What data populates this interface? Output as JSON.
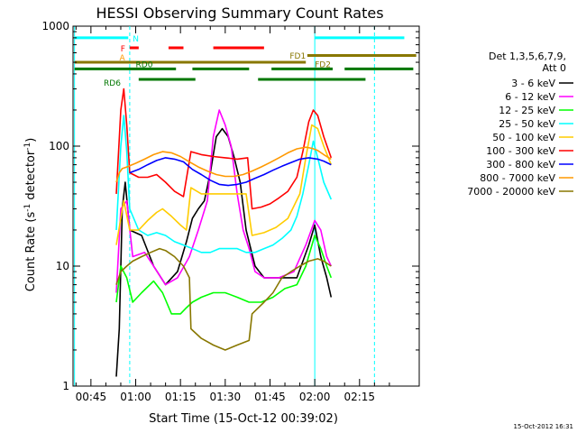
{
  "chart_data": {
    "type": "line",
    "title": "HESSI Observing Summary Count Rates",
    "xlabel": "Start Time (15-Oct-12 00:39:02)",
    "ylabel_main": "Count Rate (s",
    "ylabel_sup1": "-1",
    "ylabel_mid": " detector",
    "ylabel_sup2": "-1",
    "ylabel_end": ")",
    "yscale": "log",
    "ylim": [
      1,
      1000
    ],
    "xlim_min": [
      39.0,
      155.0
    ],
    "x_ticks": [
      {
        "v": 45,
        "label": "00:45"
      },
      {
        "v": 60,
        "label": "01:00"
      },
      {
        "v": 75,
        "label": "01:15"
      },
      {
        "v": 90,
        "label": "01:30"
      },
      {
        "v": 105,
        "label": "01:45"
      },
      {
        "v": 120,
        "label": "02:00"
      },
      {
        "v": 135,
        "label": "02:15"
      }
    ],
    "y_ticks": [
      {
        "v": 1,
        "label": "1"
      },
      {
        "v": 10,
        "label": "10"
      },
      {
        "v": 100,
        "label": "100"
      },
      {
        "v": 1000,
        "label": "1000"
      }
    ],
    "legend_header": [
      "Det 1,3,5,6,7,9,",
      "Att 0"
    ],
    "legend_position": "right",
    "series": [
      {
        "name": "3 - 6 keV",
        "color": "#000000",
        "points": [
          [
            53.5,
            1.2
          ],
          [
            54.5,
            3
          ],
          [
            55.5,
            30
          ],
          [
            56.5,
            50
          ],
          [
            58,
            20
          ],
          [
            62,
            18
          ],
          [
            66,
            10
          ],
          [
            70,
            7
          ],
          [
            74,
            9
          ],
          [
            77,
            16
          ],
          [
            79,
            25
          ],
          [
            81,
            30
          ],
          [
            83,
            35
          ],
          [
            85,
            60
          ],
          [
            87,
            120
          ],
          [
            89,
            140
          ],
          [
            91,
            120
          ],
          [
            93,
            80
          ],
          [
            95,
            50
          ],
          [
            97,
            20
          ],
          [
            100,
            10
          ],
          [
            103,
            8
          ],
          [
            106,
            8
          ],
          [
            110,
            8
          ],
          [
            114,
            8
          ],
          [
            118,
            15
          ],
          [
            120,
            22
          ],
          [
            122,
            12
          ],
          [
            124,
            8
          ],
          [
            125.5,
            5.5
          ]
        ]
      },
      {
        "name": "6 - 12 keV",
        "color": "#ff00ff",
        "points": [
          [
            53.5,
            6
          ],
          [
            55,
            30
          ],
          [
            57,
            35
          ],
          [
            59,
            12
          ],
          [
            63,
            13
          ],
          [
            66,
            10
          ],
          [
            70,
            7
          ],
          [
            74,
            8
          ],
          [
            78,
            12
          ],
          [
            81,
            20
          ],
          [
            84,
            35
          ],
          [
            86,
            120
          ],
          [
            88,
            200
          ],
          [
            90,
            150
          ],
          [
            92,
            100
          ],
          [
            94,
            40
          ],
          [
            96,
            20
          ],
          [
            98,
            14
          ],
          [
            100,
            9
          ],
          [
            103,
            8
          ],
          [
            108,
            8
          ],
          [
            113,
            9
          ],
          [
            117,
            15
          ],
          [
            120,
            24
          ],
          [
            122,
            20
          ],
          [
            124,
            12
          ],
          [
            125.5,
            10
          ]
        ]
      },
      {
        "name": "12 - 25 keV",
        "color": "#00ff00",
        "points": [
          [
            53.5,
            5
          ],
          [
            55,
            10
          ],
          [
            57,
            8
          ],
          [
            59,
            5
          ],
          [
            62,
            6
          ],
          [
            66,
            7.5
          ],
          [
            69,
            6
          ],
          [
            72,
            4
          ],
          [
            75,
            4
          ],
          [
            77,
            4.5
          ],
          [
            79,
            5
          ],
          [
            82,
            5.5
          ],
          [
            86,
            6
          ],
          [
            90,
            6
          ],
          [
            94,
            5.5
          ],
          [
            98,
            5
          ],
          [
            102,
            5
          ],
          [
            106,
            5.5
          ],
          [
            110,
            6.5
          ],
          [
            114,
            7
          ],
          [
            117,
            10
          ],
          [
            120,
            18
          ],
          [
            122,
            14
          ],
          [
            124,
            10
          ],
          [
            125.5,
            8
          ]
        ]
      },
      {
        "name": "25 - 50 keV",
        "color": "#00ffff",
        "points": [
          [
            53.5,
            20
          ],
          [
            55,
            100
          ],
          [
            56,
            180
          ],
          [
            57,
            90
          ],
          [
            58,
            30
          ],
          [
            61,
            20
          ],
          [
            64,
            18
          ],
          [
            67,
            19
          ],
          [
            70,
            18
          ],
          [
            73,
            16
          ],
          [
            76,
            15
          ],
          [
            79,
            14
          ],
          [
            82,
            13
          ],
          [
            85,
            13
          ],
          [
            88,
            14
          ],
          [
            91,
            14
          ],
          [
            94,
            14
          ],
          [
            97,
            13
          ],
          [
            100,
            13
          ],
          [
            103,
            14
          ],
          [
            106,
            15
          ],
          [
            109,
            17
          ],
          [
            112,
            20
          ],
          [
            114,
            26
          ],
          [
            116,
            40
          ],
          [
            118,
            70
          ],
          [
            119.5,
            110
          ],
          [
            121,
            80
          ],
          [
            123,
            50
          ],
          [
            125.5,
            36
          ]
        ]
      },
      {
        "name": "50 - 100 keV",
        "color": "#ffcc00",
        "points": [
          [
            53.5,
            15
          ],
          [
            56,
            35
          ],
          [
            58,
            20
          ],
          [
            61,
            20
          ],
          [
            64,
            24
          ],
          [
            67,
            28
          ],
          [
            69,
            30
          ],
          [
            72,
            26
          ],
          [
            75,
            22
          ],
          [
            77,
            20
          ],
          [
            78.5,
            45
          ],
          [
            82,
            40
          ],
          [
            86,
            40
          ],
          [
            90,
            40
          ],
          [
            94,
            40
          ],
          [
            97,
            40
          ],
          [
            99,
            18
          ],
          [
            103,
            19
          ],
          [
            107,
            21
          ],
          [
            111,
            25
          ],
          [
            115,
            40
          ],
          [
            117,
            80
          ],
          [
            119,
            150
          ],
          [
            121,
            140
          ],
          [
            123,
            100
          ],
          [
            125.5,
            70
          ]
        ]
      },
      {
        "name": "100 - 300 keV",
        "color": "#ff0000",
        "points": [
          [
            53.5,
            40
          ],
          [
            55,
            200
          ],
          [
            56,
            300
          ],
          [
            57,
            150
          ],
          [
            58,
            60
          ],
          [
            61,
            55
          ],
          [
            64,
            55
          ],
          [
            67,
            58
          ],
          [
            70,
            50
          ],
          [
            73,
            42
          ],
          [
            76,
            38
          ],
          [
            78.5,
            90
          ],
          [
            82,
            85
          ],
          [
            86,
            82
          ],
          [
            90,
            80
          ],
          [
            94,
            78
          ],
          [
            97.5,
            80
          ],
          [
            99,
            30
          ],
          [
            102,
            31
          ],
          [
            105,
            33
          ],
          [
            108,
            37
          ],
          [
            111,
            42
          ],
          [
            114,
            55
          ],
          [
            116,
            90
          ],
          [
            118,
            160
          ],
          [
            119.5,
            200
          ],
          [
            121,
            180
          ],
          [
            123,
            120
          ],
          [
            125.5,
            80
          ]
        ]
      },
      {
        "name": "300 - 800 keV",
        "color": "#0000ff",
        "points": [
          [
            58,
            60
          ],
          [
            61,
            64
          ],
          [
            64,
            70
          ],
          [
            67,
            76
          ],
          [
            70,
            80
          ],
          [
            73,
            78
          ],
          [
            76,
            74
          ],
          [
            79,
            64
          ],
          [
            82,
            58
          ],
          [
            85,
            52
          ],
          [
            88,
            48
          ],
          [
            91,
            47
          ],
          [
            94,
            48
          ],
          [
            97,
            50
          ],
          [
            100,
            54
          ],
          [
            103,
            58
          ],
          [
            106,
            63
          ],
          [
            109,
            68
          ],
          [
            112,
            73
          ],
          [
            115,
            78
          ],
          [
            118,
            80
          ],
          [
            121,
            78
          ],
          [
            123,
            75
          ],
          [
            125.5,
            70
          ]
        ]
      },
      {
        "name": "800 - 7000 keV",
        "color": "#ff9900",
        "points": [
          [
            53.5,
            50
          ],
          [
            54.5,
            60
          ],
          [
            55.5,
            65
          ],
          [
            57,
            67
          ],
          [
            60,
            72
          ],
          [
            63,
            78
          ],
          [
            66,
            85
          ],
          [
            69,
            90
          ],
          [
            72,
            88
          ],
          [
            75,
            82
          ],
          [
            78,
            74
          ],
          [
            81,
            67
          ],
          [
            84,
            62
          ],
          [
            87,
            58
          ],
          [
            90,
            56
          ],
          [
            93,
            56
          ],
          [
            96,
            58
          ],
          [
            99,
            62
          ],
          [
            102,
            67
          ],
          [
            105,
            73
          ],
          [
            108,
            80
          ],
          [
            111,
            88
          ],
          [
            114,
            95
          ],
          [
            117,
            98
          ],
          [
            119,
            96
          ],
          [
            121,
            92
          ],
          [
            123,
            85
          ],
          [
            125.5,
            78
          ]
        ]
      },
      {
        "name": "7000 - 20000 keV",
        "color": "#887700",
        "points": [
          [
            53.5,
            7
          ],
          [
            55,
            9
          ],
          [
            57,
            10
          ],
          [
            59,
            11
          ],
          [
            62,
            12
          ],
          [
            65,
            13
          ],
          [
            68,
            14
          ],
          [
            70,
            13.5
          ],
          [
            73,
            12
          ],
          [
            76,
            10
          ],
          [
            78,
            8
          ],
          [
            78.5,
            3
          ],
          [
            82,
            2.5
          ],
          [
            86,
            2.2
          ],
          [
            90,
            2
          ],
          [
            94,
            2.2
          ],
          [
            98,
            2.4
          ],
          [
            99,
            4
          ],
          [
            103,
            5
          ],
          [
            106,
            6
          ],
          [
            109,
            8
          ],
          [
            112,
            9
          ],
          [
            115,
            10
          ],
          [
            118,
            11
          ],
          [
            121,
            11.5
          ],
          [
            123,
            11
          ],
          [
            125.5,
            10
          ]
        ]
      }
    ],
    "annotations": [
      {
        "label": "N",
        "color": "#00ffff"
      },
      {
        "label": "F",
        "color": "#ff0000"
      },
      {
        "label": "FD1",
        "color": "#887700"
      },
      {
        "label": "FD2",
        "color": "#887700"
      },
      {
        "label": "RD0",
        "color": "#007700"
      },
      {
        "label": "RD6",
        "color": "#007700"
      },
      {
        "label": "A",
        "color": "#ff9900"
      }
    ],
    "state_bars": {
      "N": {
        "color": "#00ffff",
        "y": 800,
        "segments": [
          [
            39.5,
            57.5
          ],
          [
            120,
            150
          ]
        ]
      },
      "F": {
        "color": "#ff0000",
        "y": 660,
        "segments": [
          [
            58,
            61
          ],
          [
            71,
            76
          ],
          [
            86,
            103
          ]
        ]
      },
      "FD1": {
        "color": "#887700",
        "y": 500,
        "segments": [
          [
            39.5,
            117
          ]
        ]
      },
      "FD2": {
        "color": "#887700",
        "y": 570,
        "segments": [
          [
            117.5,
            154
          ]
        ]
      },
      "RD0": {
        "color": "#007700",
        "y": 440,
        "segments": [
          [
            39.5,
            73.5
          ],
          [
            79,
            98
          ]
        ]
      },
      "RD6": {
        "color": "#007700",
        "y": 360,
        "segments": [
          [
            61,
            80
          ],
          [
            101,
            137
          ]
        ]
      },
      "RD_top": {
        "color": "#007700",
        "y": 440,
        "segments": [
          [
            105.5,
            126
          ],
          [
            130,
            153
          ]
        ]
      }
    },
    "vlines": [
      {
        "x": 39.5,
        "color": "#00ffff",
        "dash": false
      },
      {
        "x": 58.0,
        "color": "#00ffff",
        "dash": true
      },
      {
        "x": 120.0,
        "color": "#00ffff",
        "dash": false
      },
      {
        "x": 140.0,
        "color": "#00ffff",
        "dash": true
      }
    ]
  },
  "footer": {
    "timestamp": "15-Oct-2012 16:31"
  }
}
